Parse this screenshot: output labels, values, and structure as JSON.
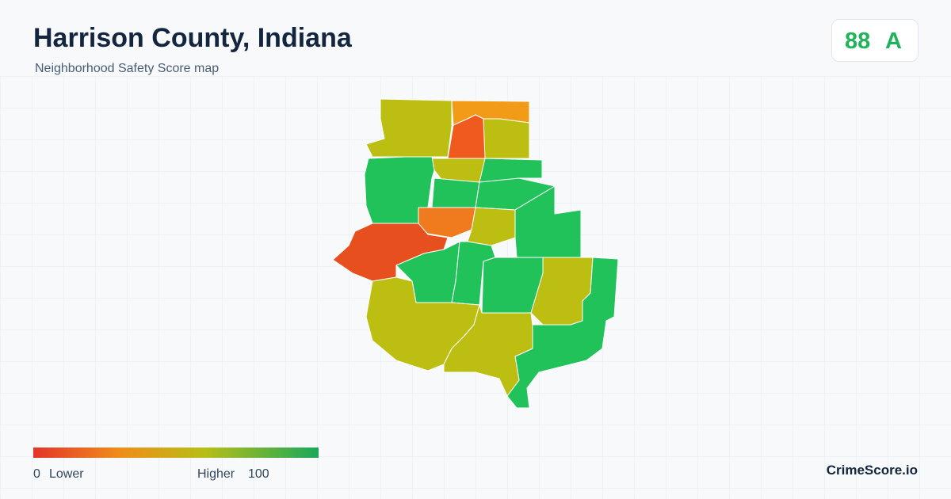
{
  "header": {
    "title": "Harrison County, Indiana",
    "subtitle": "Neighborhood Safety Score map"
  },
  "score": {
    "value": "88",
    "grade": "A"
  },
  "legend": {
    "min": "0",
    "min_label": "Lower",
    "max_label": "Higher",
    "max": "100"
  },
  "brand": "CrimeScore.io"
}
